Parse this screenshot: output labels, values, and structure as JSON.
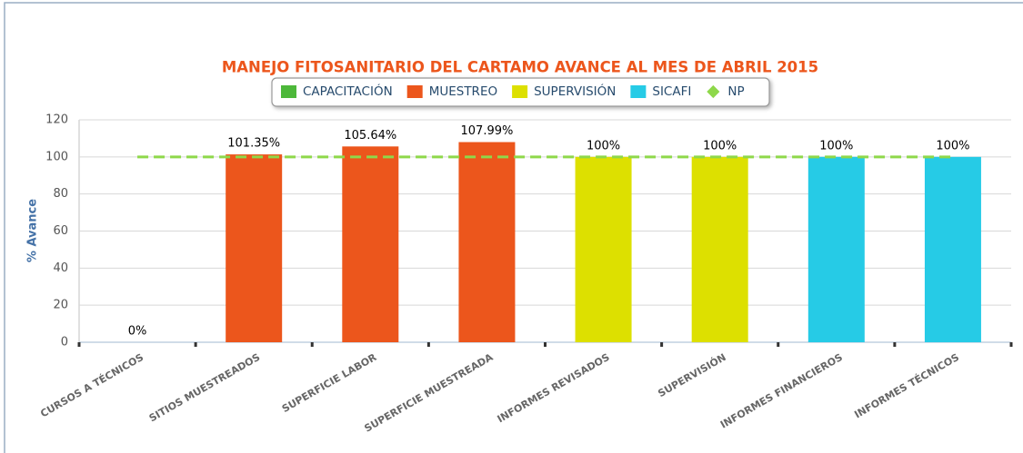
{
  "chart_data": {
    "type": "bar",
    "title": "MANEJO FITOSANITARIO DEL CARTAMO AVANCE AL MES DE ABRIL 2015",
    "y_axis_label": "% Avance",
    "categories": [
      "CURSOS A TÉCNICOS",
      "SITIOS MUESTREADOS",
      "SUPERFICIE LABOR",
      "SUPERFICIE MUESTREADA",
      "INFORMES REVISADOS",
      "SUPERVISIÓN",
      "INFORMES FINANCIEROS",
      "INFORMES TÉCNICOS"
    ],
    "series": [
      {
        "name": "CAPACITACIÓN",
        "color": "#4db83a",
        "values": [
          0,
          null,
          null,
          null,
          null,
          null,
          null,
          null
        ],
        "value_labels": [
          "0%",
          null,
          null,
          null,
          null,
          null,
          null,
          null
        ]
      },
      {
        "name": "MUESTREO",
        "color": "#ec561c",
        "values": [
          null,
          101.35,
          105.64,
          107.99,
          null,
          null,
          null,
          null
        ],
        "value_labels": [
          null,
          "101.35%",
          "105.64%",
          "107.99%",
          null,
          null,
          null,
          null
        ]
      },
      {
        "name": "SUPERVISIÓN",
        "color": "#dde000",
        "values": [
          null,
          null,
          null,
          null,
          100,
          100,
          null,
          null
        ],
        "value_labels": [
          null,
          null,
          null,
          null,
          "100%",
          "100%",
          null,
          null
        ]
      },
      {
        "name": "SICAFI",
        "color": "#26cbe6",
        "values": [
          null,
          null,
          null,
          null,
          null,
          null,
          100,
          100
        ],
        "value_labels": [
          null,
          null,
          null,
          null,
          null,
          null,
          "100%",
          "100%"
        ]
      },
      {
        "name": "NP",
        "type": "line",
        "color": "#8ed84a",
        "values": [
          100,
          100,
          100,
          100,
          100,
          100,
          100,
          100
        ]
      }
    ],
    "ylim": [
      0,
      120
    ],
    "yticks": [
      0,
      20,
      40,
      60,
      80,
      100,
      120
    ],
    "grid": true,
    "legend": "top"
  }
}
